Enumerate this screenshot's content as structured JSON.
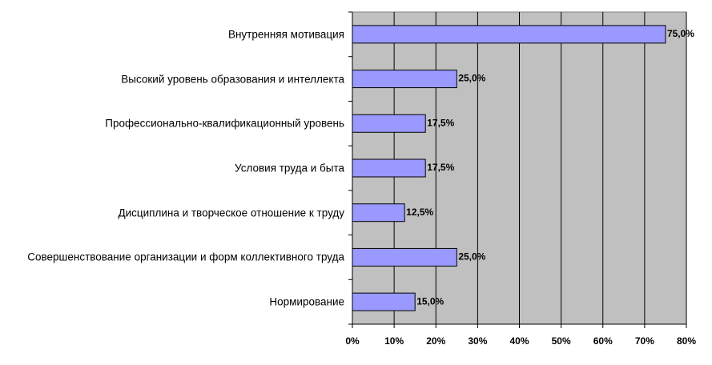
{
  "chart_data": {
    "type": "barh",
    "categories": [
      "Внутренняя мотивация",
      "Высокий уровень образования и интеллекта",
      "Профессионально-квалификационный уровень",
      "Условия труда и быта",
      "Дисциплина и творческое отношение к труду",
      "Совершенствование организации и форм коллективного труда",
      "Нормирование"
    ],
    "values": [
      75,
      25,
      17.5,
      17.5,
      12.5,
      25,
      15
    ],
    "value_labels": [
      "75,0%",
      "25,0%",
      "17,5%",
      "17,5%",
      "12,5%",
      "25,0%",
      "15,0%"
    ],
    "color": "#9999ff",
    "xlim": [
      0,
      80
    ],
    "xticks": [
      {
        "value": 0,
        "label": "0%"
      },
      {
        "value": 10,
        "label": "10%"
      },
      {
        "value": 20,
        "label": "20%"
      },
      {
        "value": 30,
        "label": "30%"
      },
      {
        "value": 40,
        "label": "40%"
      },
      {
        "value": 50,
        "label": "50%"
      },
      {
        "value": 60,
        "label": "60%"
      },
      {
        "value": 70,
        "label": "70%"
      },
      {
        "value": 80,
        "label": "80%"
      }
    ],
    "grid": true
  }
}
